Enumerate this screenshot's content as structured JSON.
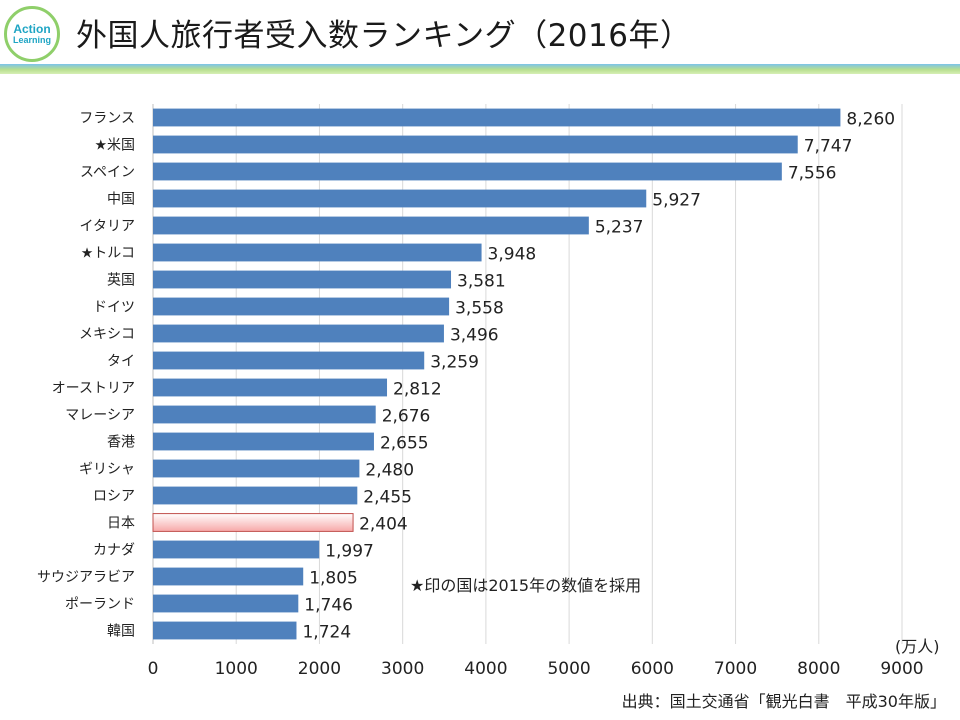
{
  "header": {
    "title": "外国人旅行者受入数ランキング（2016年）",
    "logo_line1": "Action",
    "logo_line2": "Learning"
  },
  "source": "出典：国土交通省「観光白書　平成30年版」",
  "colors": {
    "bar": "#4f81bd",
    "highlight_top": "#ffffff",
    "highlight_bottom": "#f7a8a8",
    "highlight_border": "#c0504d",
    "grid": "#d9d9d9"
  },
  "chart_data": {
    "type": "bar",
    "orientation": "horizontal",
    "title": "外国人旅行者受入数ランキング（2016年）",
    "unit_label": "(万人)",
    "xlabel": "",
    "ylabel": "",
    "xlim": [
      0,
      9000
    ],
    "xticks": [
      "0",
      "1000",
      "2000",
      "3000",
      "4000",
      "5000",
      "6000",
      "7000",
      "8000",
      "9000"
    ],
    "grid": true,
    "highlight": "日本",
    "categories": [
      "フランス",
      "★米国",
      "スペイン",
      "中国",
      "イタリア",
      "★トルコ",
      "英国",
      "ドイツ",
      "メキシコ",
      "タイ",
      "オーストリア",
      "マレーシア",
      "香港",
      "ギリシャ",
      "ロシア",
      "日本",
      "カナダ",
      "サウジアラビア",
      "ポーランド",
      "韓国"
    ],
    "values": [
      8260,
      7747,
      7556,
      5927,
      5237,
      3948,
      3581,
      3558,
      3496,
      3259,
      2812,
      2676,
      2655,
      2480,
      2455,
      2404,
      1997,
      1805,
      1746,
      1724
    ],
    "value_labels": [
      "8,260",
      "7,747",
      "7,556",
      "5,927",
      "5,237",
      "3,948",
      "3,581",
      "3,558",
      "3,496",
      "3,259",
      "2,812",
      "2,676",
      "2,655",
      "2,480",
      "2,455",
      "2,404",
      "1,997",
      "1,805",
      "1,746",
      "1,724"
    ],
    "annotation": "★印の国は2015年の数値を採用"
  }
}
